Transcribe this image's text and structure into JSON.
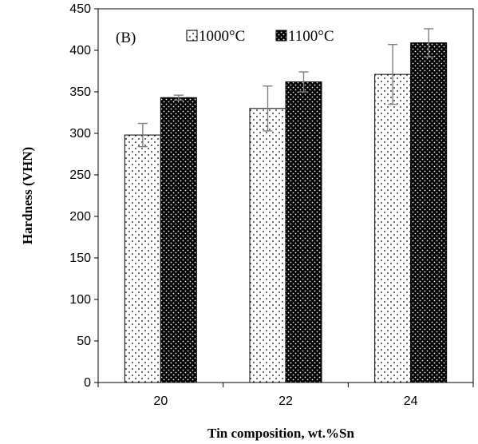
{
  "chart_data": {
    "type": "bar",
    "panel_label": "(B)",
    "xlabel": "Tin composition, wt.%Sn",
    "ylabel": "Hardness  (VHN)",
    "categories": [
      "20",
      "22",
      "24"
    ],
    "ylim": [
      0,
      450
    ],
    "yticks": [
      0,
      50,
      100,
      150,
      200,
      250,
      300,
      350,
      400,
      450
    ],
    "grid": false,
    "legend_position": "top",
    "series": [
      {
        "name": "1000°C",
        "pattern": "light-dots",
        "fill_color": "#ffffff",
        "dot_color": "#000000",
        "values": [
          298,
          330,
          371
        ],
        "error": [
          14,
          27,
          36
        ]
      },
      {
        "name": "1100°C",
        "pattern": "dark-dots",
        "fill_color": "#000000",
        "dot_color": "#ffffff",
        "values": [
          343,
          362,
          409
        ],
        "error": [
          3,
          12,
          17
        ]
      }
    ],
    "error_bar_color": "#7f7f7f"
  }
}
